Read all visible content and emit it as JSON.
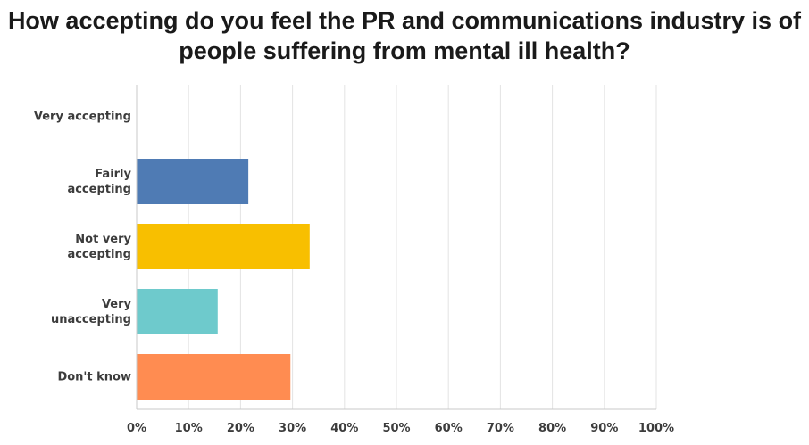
{
  "chart_data": {
    "type": "bar",
    "orientation": "horizontal",
    "title_lines": [
      "How accepting do you feel the PR and communications industry is of",
      "people suffering from mental ill health?"
    ],
    "categories": [
      [
        "Very accepting"
      ],
      [
        "Fairly",
        "accepting"
      ],
      [
        "Not very",
        "accepting"
      ],
      [
        "Very",
        "unaccepting"
      ],
      [
        "Don't know"
      ]
    ],
    "values": [
      0,
      21.5,
      33.3,
      15.6,
      29.6
    ],
    "colors": [
      "#5b8cc6",
      "#4f7bb4",
      "#f8bf00",
      "#6ecacc",
      "#ff8c51"
    ],
    "x_ticks": [
      "0%",
      "10%",
      "20%",
      "30%",
      "40%",
      "50%",
      "60%",
      "70%",
      "80%",
      "90%",
      "100%"
    ],
    "xlim": [
      0,
      100
    ],
    "grid": true,
    "xlabel": "",
    "ylabel": ""
  }
}
